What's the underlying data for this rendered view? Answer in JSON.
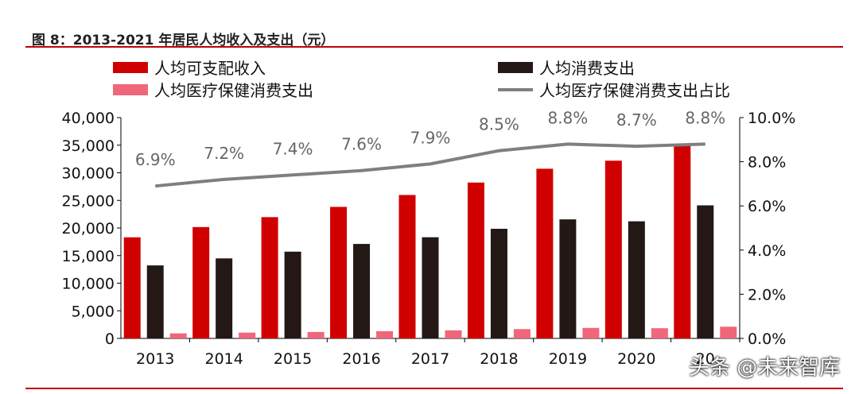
{
  "header": {
    "title": "图 8：2013-2021 年居民人均收入及支出（元）"
  },
  "legend": [
    {
      "name": "人均可支配收入",
      "color": "#d10000",
      "kind": "bar"
    },
    {
      "name": "人均消费支出",
      "color": "#231815",
      "kind": "bar"
    },
    {
      "name": "人均医疗保健消费支出",
      "color": "#f0667a",
      "kind": "bar"
    },
    {
      "name": "人均医疗保健消费支出占比",
      "color": "#7f7f7f",
      "kind": "line"
    }
  ],
  "watermark": "头条 @未来智库",
  "chart_data": {
    "type": "bar",
    "title": "图 8：2013-2021 年居民人均收入及支出（元）",
    "categories": [
      "2013",
      "2014",
      "2015",
      "2016",
      "2017",
      "2018",
      "2019",
      "2020",
      "2021"
    ],
    "xtick_labels": [
      "2013",
      "2014",
      "2015",
      "2016",
      "2017",
      "2018",
      "2019",
      "2020",
      "20"
    ],
    "ylim": [
      0,
      40000
    ],
    "y_ticks": [
      "0",
      "5,000",
      "10,000",
      "15,000",
      "20,000",
      "25,000",
      "30,000",
      "35,000",
      "40,000"
    ],
    "y2lim": [
      0,
      10
    ],
    "y2_ticks": [
      "0.0%",
      "2.0%",
      "4.0%",
      "6.0%",
      "8.0%",
      "10.0%"
    ],
    "grid": false,
    "legend_position": "top",
    "series": [
      {
        "name": "人均可支配收入",
        "axis": "left",
        "color": "#d10000",
        "values": [
          18311,
          20167,
          21966,
          23821,
          25974,
          28228,
          30733,
          32189,
          35128
        ]
      },
      {
        "name": "人均消费支出",
        "axis": "left",
        "color": "#231815",
        "values": [
          13220,
          14491,
          15712,
          17111,
          18322,
          19853,
          21559,
          21210,
          24100
        ]
      },
      {
        "name": "人均医疗保健消费支出",
        "axis": "left",
        "color": "#f0667a",
        "values": [
          912,
          1045,
          1165,
          1307,
          1451,
          1685,
          1902,
          1843,
          2115
        ]
      },
      {
        "name": "人均医疗保健消费支出占比",
        "axis": "right",
        "type": "line",
        "color": "#7f7f7f",
        "values": [
          6.9,
          7.2,
          7.4,
          7.6,
          7.9,
          8.5,
          8.8,
          8.7,
          8.8
        ],
        "labels": [
          "6.9%",
          "7.2%",
          "7.4%",
          "7.6%",
          "7.9%",
          "8.5%",
          "8.8%",
          "8.7%",
          "8.8%"
        ]
      }
    ]
  }
}
